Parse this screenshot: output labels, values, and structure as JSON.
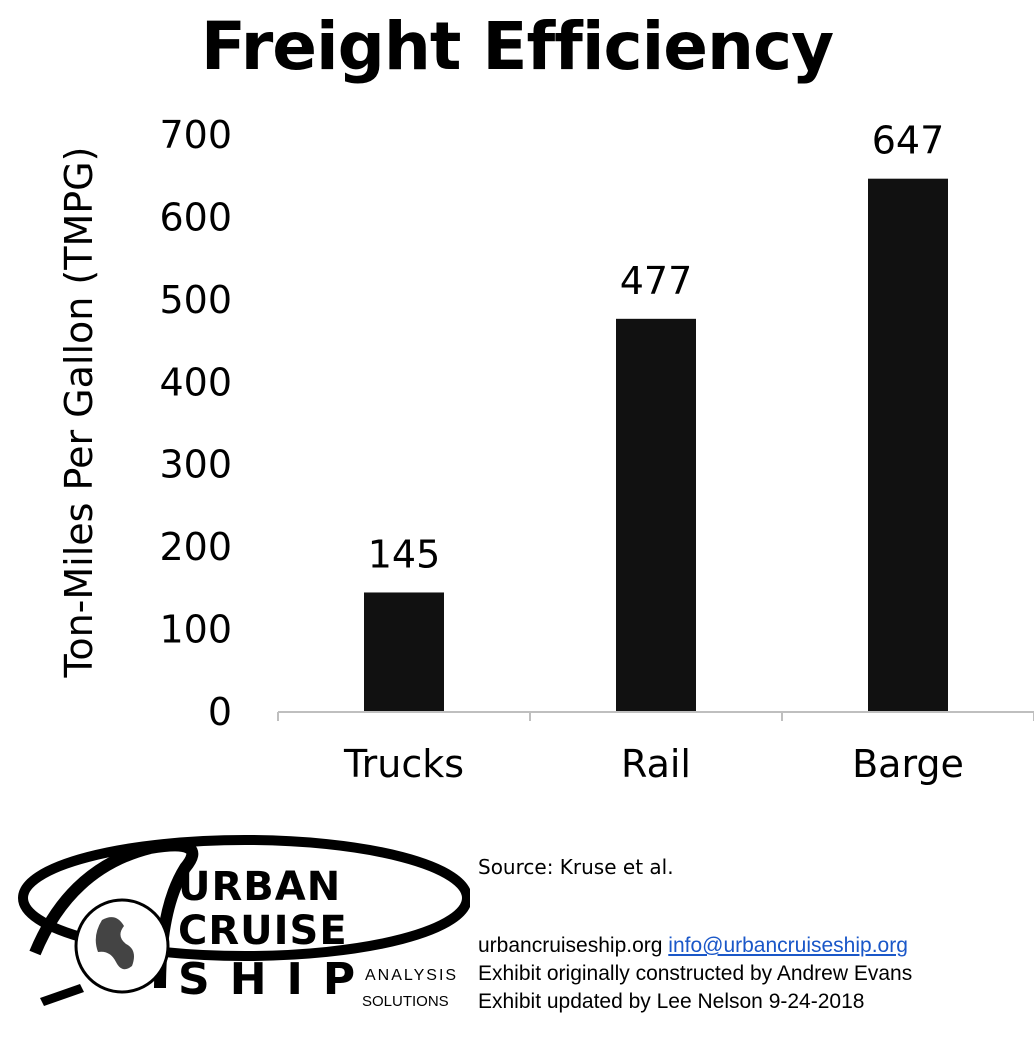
{
  "chart_data": {
    "type": "bar",
    "title": "Freight Efficiency",
    "ylabel": "Ton-Miles Per Gallon (TMPG)",
    "xlabel": "",
    "categories": [
      "Trucks",
      "Rail",
      "Barge"
    ],
    "values": [
      145,
      477,
      647
    ],
    "data_labels": [
      "145",
      "477",
      "647"
    ],
    "ylim": [
      0,
      700
    ],
    "yticks": [
      "0",
      "100",
      "200",
      "300",
      "400",
      "500",
      "600",
      "700"
    ],
    "grid": false,
    "legend": "none",
    "bar_color": "#111111"
  },
  "footer": {
    "source": "Source: Kruse et al.",
    "website": "urbancruiseship.org",
    "email": "info@urbancruiseship.org",
    "credit1": "Exhibit originally constructed by Andrew Evans",
    "credit2": "Exhibit updated by Lee Nelson 9-24-2018"
  },
  "logo": {
    "line1": "URBAN",
    "line2": "CRUISE",
    "line3": "SHIP",
    "sub1": "ANALYSIS",
    "sub2": "SOLUTIONS"
  }
}
